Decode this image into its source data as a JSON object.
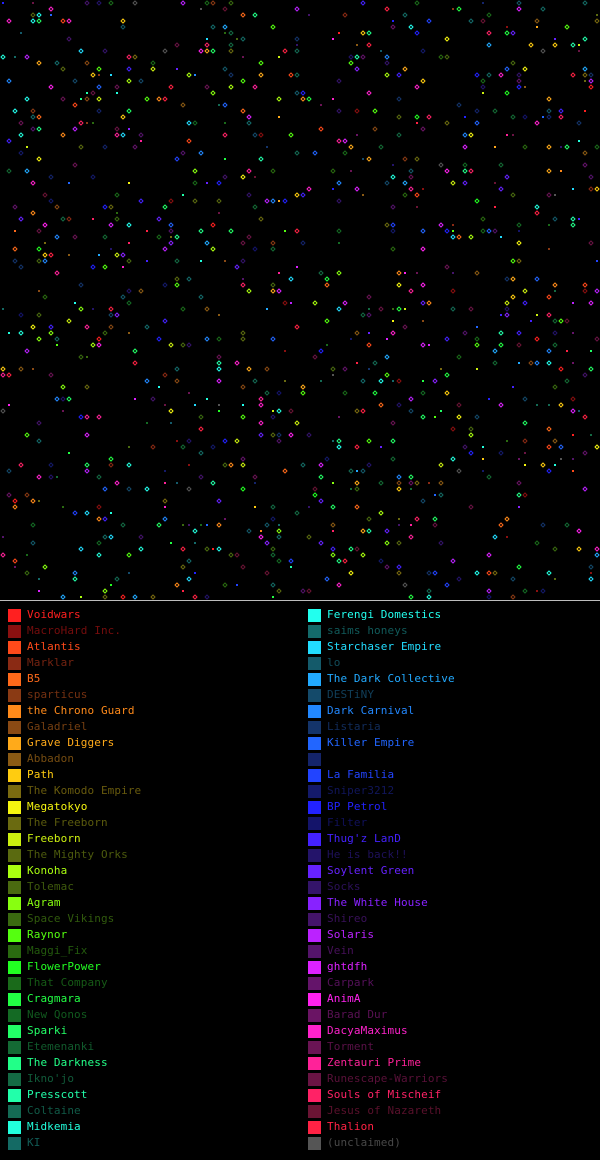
{
  "legend": {
    "left": [
      {
        "name": "Voidwars",
        "color": "#ff2020",
        "active": true
      },
      {
        "name": "MacroHard Inc.",
        "color": "#8a1010",
        "active": false
      },
      {
        "name": "Atlantis",
        "color": "#ff4a1a",
        "active": true
      },
      {
        "name": "Marklar",
        "color": "#8a2a14",
        "active": false
      },
      {
        "name": "B5",
        "color": "#ff6a1a",
        "active": true
      },
      {
        "name": "sparticus",
        "color": "#8a3a14",
        "active": false
      },
      {
        "name": "the Chrono Guard",
        "color": "#ff8a1a",
        "active": true
      },
      {
        "name": "Galadriel",
        "color": "#8a4a14",
        "active": false
      },
      {
        "name": "Grave Diggers",
        "color": "#ffaa1a",
        "active": true
      },
      {
        "name": "Abbadon",
        "color": "#8a5a14",
        "active": false
      },
      {
        "name": "Path",
        "color": "#ffcc10",
        "active": true
      },
      {
        "name": "The Komodo Empire",
        "color": "#7a6a10",
        "active": false
      },
      {
        "name": "Megatokyo",
        "color": "#f5f510",
        "active": true
      },
      {
        "name": "The Freeborn",
        "color": "#6a6a10",
        "active": false
      },
      {
        "name": "Freeborn",
        "color": "#ccf010",
        "active": true
      },
      {
        "name": "The Mighty Orks",
        "color": "#5a6a10",
        "active": false
      },
      {
        "name": "Konoha",
        "color": "#aaff10",
        "active": true
      },
      {
        "name": "Tolemac",
        "color": "#4a6a10",
        "active": false
      },
      {
        "name": "Agram",
        "color": "#88ff10",
        "active": true
      },
      {
        "name": "Space Vikings",
        "color": "#3a6a10",
        "active": false
      },
      {
        "name": "Raynor",
        "color": "#55ff10",
        "active": true
      },
      {
        "name": "Maggi_Fix",
        "color": "#2a6a10",
        "active": false
      },
      {
        "name": "FlowerPower",
        "color": "#22ff22",
        "active": true
      },
      {
        "name": "That Company",
        "color": "#1a6a1a",
        "active": false
      },
      {
        "name": "Cragmara",
        "color": "#22ff44",
        "active": true
      },
      {
        "name": "New Qonos",
        "color": "#146a24",
        "active": false
      },
      {
        "name": "Sparki",
        "color": "#22ff66",
        "active": true
      },
      {
        "name": "Etemenanki",
        "color": "#146a34",
        "active": false
      },
      {
        "name": "The Darkness",
        "color": "#22ff88",
        "active": true
      },
      {
        "name": "Ikno'jo",
        "color": "#146a44",
        "active": false
      },
      {
        "name": "Presscott",
        "color": "#22ffaa",
        "active": true
      },
      {
        "name": "Coltaine",
        "color": "#146a54",
        "active": false
      },
      {
        "name": "Midkemia",
        "color": "#22ffdd",
        "active": true
      },
      {
        "name": "KI",
        "color": "#146a64",
        "active": false
      }
    ],
    "right": [
      {
        "name": "Ferengi Domestics",
        "color": "#22ffee",
        "active": true
      },
      {
        "name": "saims honeys",
        "color": "#146a6a",
        "active": false
      },
      {
        "name": "Starchaser Empire",
        "color": "#22ddff",
        "active": true
      },
      {
        "name": "lo",
        "color": "#145a6a",
        "active": false
      },
      {
        "name": "The Dark Collective",
        "color": "#22aaff",
        "active": true
      },
      {
        "name": "DESTiNY",
        "color": "#144a6a",
        "active": false
      },
      {
        "name": "Dark Carnival",
        "color": "#2288ff",
        "active": true
      },
      {
        "name": "Listaria",
        "color": "#14346a",
        "active": false
      },
      {
        "name": "Killer Empire",
        "color": "#2266ff",
        "active": true
      },
      {
        "name": "",
        "color": "#14246a",
        "active": false
      },
      {
        "name": "La Familia",
        "color": "#2244ff",
        "active": true
      },
      {
        "name": "Sniper3212",
        "color": "#141a6a",
        "active": false
      },
      {
        "name": "BP Petrol",
        "color": "#2222ff",
        "active": true
      },
      {
        "name": "Filter",
        "color": "#14146a",
        "active": false
      },
      {
        "name": "Thug'z LanD",
        "color": "#4422ff",
        "active": true
      },
      {
        "name": "He is back!!",
        "color": "#24146a",
        "active": false
      },
      {
        "name": "Soylent Green",
        "color": "#6622ff",
        "active": true
      },
      {
        "name": "Socks",
        "color": "#34146a",
        "active": false
      },
      {
        "name": "The White House",
        "color": "#8822ff",
        "active": true
      },
      {
        "name": "Shireo",
        "color": "#44146a",
        "active": false
      },
      {
        "name": "Solaris",
        "color": "#bb22ff",
        "active": true
      },
      {
        "name": "Vein",
        "color": "#54146a",
        "active": false
      },
      {
        "name": "ghtdfh",
        "color": "#dd22ff",
        "active": true
      },
      {
        "name": "Carpark",
        "color": "#64146a",
        "active": false
      },
      {
        "name": "AnimA",
        "color": "#ff22ee",
        "active": true
      },
      {
        "name": "Barad Dur",
        "color": "#6a1464",
        "active": false
      },
      {
        "name": "DacyaMaximus",
        "color": "#ff22cc",
        "active": true
      },
      {
        "name": "Torment",
        "color": "#6a1454",
        "active": false
      },
      {
        "name": "Zentauri Prime",
        "color": "#ff2299",
        "active": true
      },
      {
        "name": "Runescape-Warriors",
        "color": "#6a1444",
        "active": false
      },
      {
        "name": "Souls of Mischeif",
        "color": "#ff2266",
        "active": true
      },
      {
        "name": "Jesus of Nazareth",
        "color": "#6a1434",
        "active": false
      },
      {
        "name": "Thalion",
        "color": "#ff2244",
        "active": true
      },
      {
        "name": "(unclaimed)",
        "color": "#555555",
        "active": false
      }
    ]
  }
}
